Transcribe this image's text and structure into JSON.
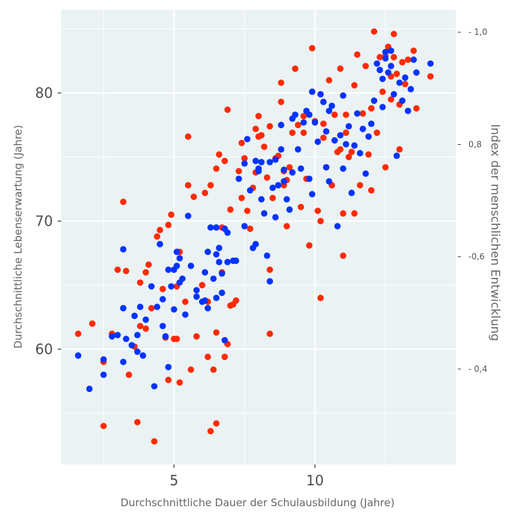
{
  "chart_data": {
    "type": "scatter",
    "xlabel": "Durchschnittliche Dauer der Schulausbildung (Jahre)",
    "ylabel": "Durchschnittliche Lebenserwartung (Jahre)",
    "y2label": "Index der menschlichen Entwicklung",
    "xlim": [
      1.0,
      15.0
    ],
    "ylim": [
      51.0,
      86.5
    ],
    "y2lim": [
      0.23,
      1.04
    ],
    "x_ticks": [
      {
        "value": 5,
        "label": "5"
      },
      {
        "value": 10,
        "label": "10"
      }
    ],
    "y_ticks": [
      {
        "value": 60,
        "label": "60"
      },
      {
        "value": 70,
        "label": "70"
      },
      {
        "value": 80,
        "label": "80"
      }
    ],
    "y2_ticks": [
      {
        "value": 0.4,
        "label": "- 0,4"
      },
      {
        "value": 0.6,
        "label": "-0,6"
      },
      {
        "value": 0.8,
        "label": "0,8"
      },
      {
        "value": 1.0,
        "label": "- 1,0"
      }
    ],
    "grid": true,
    "background": "#eaf2f4",
    "colors": {
      "red": "#ff2a00",
      "blue": "#0033ff"
    },
    "series": [
      {
        "color": "red",
        "points": [
          [
            1.6,
            61.2
          ],
          [
            2.1,
            62
          ],
          [
            2.5,
            54
          ],
          [
            2.5,
            59
          ],
          [
            2.8,
            61.2
          ],
          [
            3,
            66.2
          ],
          [
            3.2,
            71.5
          ],
          [
            3.3,
            66.1
          ],
          [
            3.4,
            58
          ],
          [
            3.6,
            60.2
          ],
          [
            3.7,
            54.3
          ],
          [
            3.8,
            61.8
          ],
          [
            3.8,
            65.2
          ],
          [
            4,
            66
          ],
          [
            4,
            61.6
          ],
          [
            4.1,
            66.6
          ],
          [
            4.3,
            52.8
          ],
          [
            4.4,
            68.8
          ],
          [
            4.5,
            69.3
          ],
          [
            4.6,
            64.7
          ],
          [
            4.7,
            60.9
          ],
          [
            4.8,
            57.6
          ],
          [
            4.8,
            69.7
          ],
          [
            4.9,
            70.5
          ],
          [
            5,
            60.8
          ],
          [
            5.1,
            64.9
          ],
          [
            5.1,
            60.8
          ],
          [
            5.2,
            67.6
          ],
          [
            5.2,
            57.4
          ],
          [
            5.4,
            63.7
          ],
          [
            5.5,
            76.6
          ],
          [
            5.5,
            72.8
          ],
          [
            5.6,
            58.4
          ],
          [
            5.7,
            71.9
          ],
          [
            6,
            65
          ],
          [
            6.1,
            72.2
          ],
          [
            6.2,
            63.7
          ],
          [
            6.3,
            72.8
          ],
          [
            6.3,
            53.6
          ],
          [
            6.4,
            58.4
          ],
          [
            6.5,
            54.2
          ],
          [
            6.5,
            61.3
          ],
          [
            6.5,
            74.1
          ],
          [
            6.6,
            75.2
          ],
          [
            6.7,
            69.5
          ],
          [
            6.7,
            66
          ],
          [
            6.8,
            74.7
          ],
          [
            6.8,
            59.4
          ],
          [
            6.9,
            60.4
          ],
          [
            6.9,
            78.7
          ],
          [
            7,
            70.9
          ],
          [
            7,
            63.4
          ],
          [
            7.1,
            63.5
          ],
          [
            7.2,
            63.8
          ],
          [
            7.3,
            73.9
          ],
          [
            7.4,
            71.8
          ],
          [
            7.4,
            76.1
          ],
          [
            7.5,
            74.9
          ],
          [
            7.6,
            70.8
          ],
          [
            7.8,
            72.6
          ],
          [
            7.9,
            73.8
          ],
          [
            7.9,
            77.2
          ],
          [
            8,
            78.2
          ],
          [
            8,
            76.6
          ],
          [
            8.1,
            76.7
          ],
          [
            8.2,
            75.8
          ],
          [
            8.3,
            73.4
          ],
          [
            8.4,
            66.2
          ],
          [
            8.4,
            61.2
          ],
          [
            8.4,
            77.4
          ],
          [
            8.5,
            71.8
          ],
          [
            8.6,
            74.9
          ],
          [
            8.7,
            75.1
          ],
          [
            8.8,
            80.8
          ],
          [
            8.8,
            79.3
          ],
          [
            8.9,
            73.9
          ],
          [
            9,
            73.2
          ],
          [
            9,
            69.6
          ],
          [
            9.2,
            76.9
          ],
          [
            9.3,
            81.9
          ],
          [
            9.4,
            77.5
          ],
          [
            9.5,
            71.1
          ],
          [
            9.6,
            76.9
          ],
          [
            9.7,
            73.3
          ],
          [
            9.8,
            68.1
          ],
          [
            9.9,
            83.5
          ],
          [
            10,
            77.8
          ],
          [
            10.1,
            70.8
          ],
          [
            10.2,
            70
          ],
          [
            10.2,
            64
          ],
          [
            10.3,
            77.6
          ],
          [
            10.4,
            74.2
          ],
          [
            10.5,
            81
          ],
          [
            10.6,
            72.8
          ],
          [
            10.7,
            78.3
          ],
          [
            10.8,
            75.4
          ],
          [
            10.9,
            81.9
          ],
          [
            11,
            70.6
          ],
          [
            11,
            67.3
          ],
          [
            11.1,
            78.3
          ],
          [
            11.2,
            75
          ],
          [
            11.3,
            75.4
          ],
          [
            11.4,
            80.6
          ],
          [
            11.4,
            70.6
          ],
          [
            11.5,
            83
          ],
          [
            11.6,
            72.8
          ],
          [
            11.7,
            78.4
          ],
          [
            11.8,
            82.1
          ],
          [
            11.9,
            75.2
          ],
          [
            12,
            78.8
          ],
          [
            12,
            72.4
          ],
          [
            12.1,
            84.8
          ],
          [
            12.2,
            76.9
          ],
          [
            12.3,
            82.8
          ],
          [
            12.4,
            80.1
          ],
          [
            12.5,
            82.9
          ],
          [
            12.6,
            83.6
          ],
          [
            12.7,
            81.3
          ],
          [
            12.8,
            82.8
          ],
          [
            12.8,
            84.6
          ],
          [
            12.9,
            81.5
          ],
          [
            13,
            75.6
          ],
          [
            13,
            79.1
          ],
          [
            13.1,
            82.4
          ],
          [
            13.2,
            80.7
          ],
          [
            13.3,
            82.6
          ],
          [
            13.5,
            83.3
          ],
          [
            13.6,
            78.8
          ],
          [
            14.1,
            81.3
          ],
          [
            5.8,
            61
          ],
          [
            9.1,
            74.2
          ],
          [
            8.9,
            72.8
          ],
          [
            10.3,
            76.5
          ],
          [
            7.7,
            69.4
          ],
          [
            12.5,
            74.2
          ],
          [
            11.1,
            76.9
          ],
          [
            6.2,
            59.4
          ],
          [
            4.2,
            63.2
          ],
          [
            9.6,
            78.2
          ],
          [
            10.9,
            75.6
          ],
          [
            12.7,
            79.5
          ]
        ]
      },
      {
        "color": "blue",
        "points": [
          [
            1.6,
            59.5
          ],
          [
            2,
            56.9
          ],
          [
            2.5,
            59.2
          ],
          [
            2.5,
            58
          ],
          [
            2.8,
            61
          ],
          [
            3,
            61.1
          ],
          [
            3.2,
            59
          ],
          [
            3.2,
            63.2
          ],
          [
            3.2,
            67.8
          ],
          [
            3.3,
            60.8
          ],
          [
            3.5,
            60.3
          ],
          [
            3.6,
            62.6
          ],
          [
            3.7,
            59.8
          ],
          [
            3.7,
            61.1
          ],
          [
            3.8,
            63.3
          ],
          [
            3.9,
            59.5
          ],
          [
            4,
            62.3
          ],
          [
            4.2,
            64.9
          ],
          [
            4.3,
            57.1
          ],
          [
            4.4,
            63.3
          ],
          [
            4.5,
            68.2
          ],
          [
            4.6,
            61.8
          ],
          [
            4.6,
            63.9
          ],
          [
            4.7,
            61
          ],
          [
            4.8,
            66.2
          ],
          [
            4.8,
            58.6
          ],
          [
            4.9,
            64.9
          ],
          [
            5,
            66.2
          ],
          [
            5,
            63.1
          ],
          [
            5.1,
            67.6
          ],
          [
            5.1,
            66.5
          ],
          [
            5.2,
            67.1
          ],
          [
            5.2,
            65.2
          ],
          [
            5.3,
            65.5
          ],
          [
            5.4,
            62.7
          ],
          [
            5.5,
            70.4
          ],
          [
            5.6,
            66.5
          ],
          [
            5.8,
            64.1
          ],
          [
            6,
            63.7
          ],
          [
            6.1,
            66
          ],
          [
            6.1,
            63.8
          ],
          [
            6.2,
            67.6
          ],
          [
            6.2,
            63.2
          ],
          [
            6.3,
            69.5
          ],
          [
            6.4,
            65.5
          ],
          [
            6.5,
            69.5
          ],
          [
            6.5,
            67.4
          ],
          [
            6.5,
            64
          ],
          [
            6.6,
            67.9
          ],
          [
            6.6,
            66.8
          ],
          [
            6.7,
            65.9
          ],
          [
            6.7,
            64.4
          ],
          [
            6.8,
            69.4
          ],
          [
            6.8,
            60.7
          ],
          [
            6.9,
            66.8
          ],
          [
            6.9,
            69.1
          ],
          [
            7.1,
            66.9
          ],
          [
            7.2,
            66.9
          ],
          [
            7.3,
            73.3
          ],
          [
            7.5,
            69.6
          ],
          [
            7.6,
            76.4
          ],
          [
            7.7,
            72.4
          ],
          [
            7.8,
            67.9
          ],
          [
            7.9,
            68.2
          ],
          [
            7.9,
            74.7
          ],
          [
            8,
            74.1
          ],
          [
            8,
            73.9
          ],
          [
            8.1,
            74.6
          ],
          [
            8.1,
            71.7
          ],
          [
            8.2,
            70.6
          ],
          [
            8.3,
            67.3
          ],
          [
            8.4,
            65.3
          ],
          [
            8.4,
            74.6
          ],
          [
            8.5,
            72.6
          ],
          [
            8.6,
            70.3
          ],
          [
            8.6,
            74.8
          ],
          [
            8.7,
            72.8
          ],
          [
            8.8,
            77.5
          ],
          [
            8.8,
            75.6
          ],
          [
            8.9,
            74
          ],
          [
            8.9,
            73.1
          ],
          [
            9,
            71.7
          ],
          [
            9.1,
            70.9
          ],
          [
            9.2,
            73.8
          ],
          [
            9.2,
            78
          ],
          [
            9.3,
            78.3
          ],
          [
            9.4,
            75.6
          ],
          [
            9.5,
            74.1
          ],
          [
            9.6,
            77.7
          ],
          [
            9.7,
            78.6
          ],
          [
            9.8,
            73.3
          ],
          [
            9.8,
            78.3
          ],
          [
            9.9,
            80.1
          ],
          [
            10,
            77.7
          ],
          [
            10.1,
            76.2
          ],
          [
            10.2,
            79.9
          ],
          [
            10.3,
            79.3
          ],
          [
            10.4,
            77
          ],
          [
            10.4,
            74.2
          ],
          [
            10.5,
            78.6
          ],
          [
            10.6,
            79
          ],
          [
            10.7,
            76.3
          ],
          [
            10.8,
            69.6
          ],
          [
            10.9,
            76.7
          ],
          [
            11,
            74.1
          ],
          [
            11.1,
            76
          ],
          [
            11.2,
            77.4
          ],
          [
            11.3,
            72.2
          ],
          [
            11.4,
            75.9
          ],
          [
            11.5,
            78.4
          ],
          [
            11.6,
            75.3
          ],
          [
            11.7,
            77.2
          ],
          [
            11.8,
            73.7
          ],
          [
            11.9,
            76.6
          ],
          [
            12,
            77.6
          ],
          [
            12.1,
            79.4
          ],
          [
            12.2,
            82.3
          ],
          [
            12.3,
            81.8
          ],
          [
            12.4,
            78.9
          ],
          [
            12.5,
            82.7
          ],
          [
            12.6,
            81.6
          ],
          [
            12.7,
            82.1
          ],
          [
            12.8,
            79.9
          ],
          [
            12.9,
            75.1
          ],
          [
            13,
            80.8
          ],
          [
            13.1,
            79.4
          ],
          [
            13.2,
            81.2
          ],
          [
            13.3,
            78.6
          ],
          [
            13.4,
            80.3
          ],
          [
            13.5,
            82.6
          ],
          [
            13.6,
            81.6
          ],
          [
            14.1,
            82.3
          ],
          [
            12.5,
            83.2
          ],
          [
            12.7,
            83.3
          ],
          [
            12.4,
            81.1
          ],
          [
            7.5,
            74.5
          ],
          [
            9.9,
            72.1
          ],
          [
            10.5,
            73.1
          ],
          [
            11,
            79.8
          ],
          [
            5.8,
            64.6
          ]
        ]
      }
    ]
  }
}
